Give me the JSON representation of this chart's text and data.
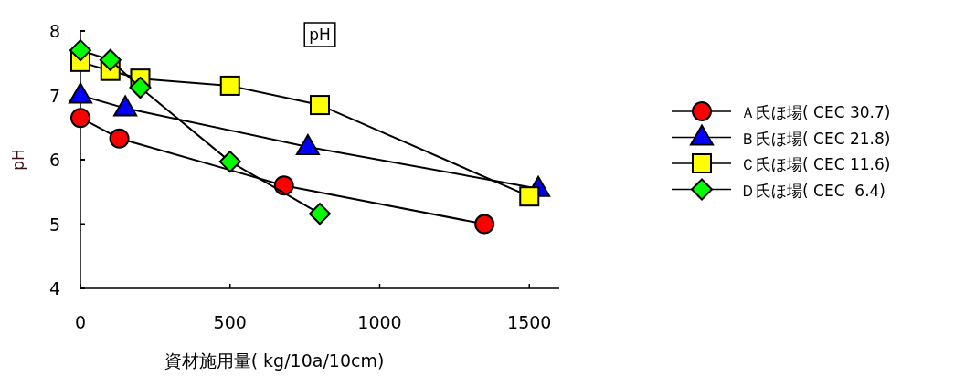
{
  "chart_data": {
    "type": "line",
    "title": "pH",
    "xlabel": "資材施用量( kg/10a/10cm)",
    "ylabel": "pH",
    "xlim": [
      0,
      1600
    ],
    "xticks": [
      0,
      500,
      1000,
      1500
    ],
    "ylim": [
      4,
      8
    ],
    "yticks": [
      4,
      5,
      6,
      7,
      8
    ],
    "grid": false,
    "legend": "right",
    "series": [
      {
        "name": "Ａ氏ほ場( CEC 30.7)",
        "color": "#ff0000",
        "marker": "circle",
        "x": [
          0,
          130,
          680,
          1350
        ],
        "values": [
          6.65,
          6.33,
          5.6,
          5.0
        ]
      },
      {
        "name": "Ｂ氏ほ場( CEC 21.8)",
        "color": "#0000ff",
        "marker": "triangle",
        "x": [
          0,
          150,
          760,
          1530
        ],
        "values": [
          7.0,
          6.8,
          6.2,
          5.55
        ]
      },
      {
        "name": "Ｃ氏ほ場( CEC 11.6)",
        "color": "#ffff00",
        "marker": "square",
        "x": [
          0,
          100,
          200,
          500,
          800,
          1500
        ],
        "values": [
          7.52,
          7.38,
          7.26,
          7.15,
          6.85,
          5.43
        ]
      },
      {
        "name": "Ｄ氏ほ場( CEC  6.4)",
        "color": "#00ff00",
        "marker": "diamond",
        "x": [
          0,
          100,
          200,
          500,
          800
        ],
        "values": [
          7.7,
          7.55,
          7.12,
          5.97,
          5.16
        ]
      }
    ]
  }
}
